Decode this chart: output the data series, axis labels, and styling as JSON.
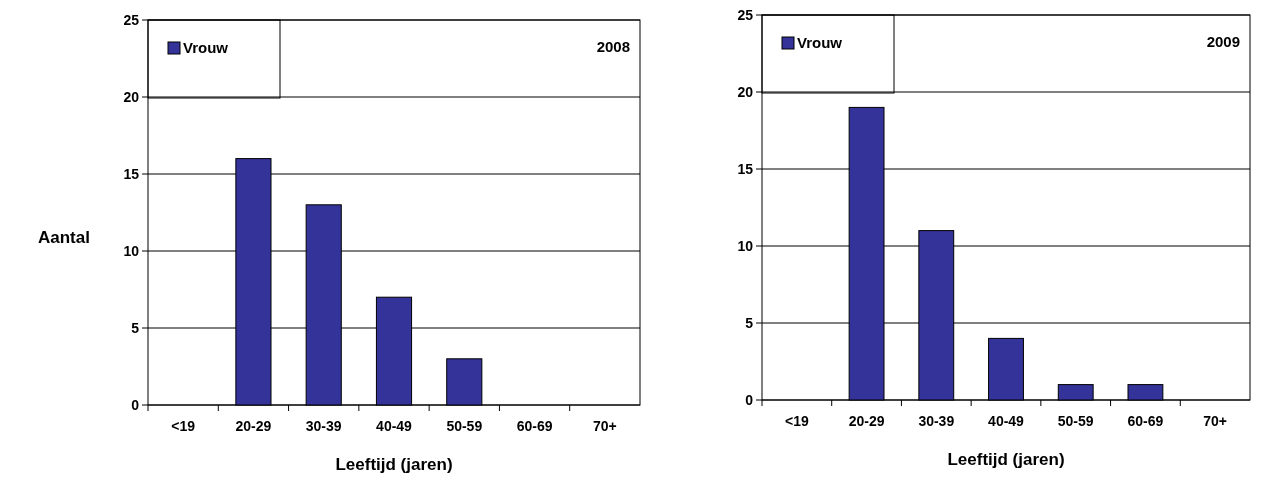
{
  "chart_data": [
    {
      "type": "bar",
      "title": "2008",
      "ylabel": "Aantal",
      "xlabel": "Leeftijd (jaren)",
      "categories": [
        "<19",
        "20-29",
        "30-39",
        "40-49",
        "50-59",
        "60-69",
        "70+"
      ],
      "series": [
        {
          "name": "Vrouw",
          "color": "#333399",
          "values": [
            0,
            16,
            13,
            7,
            3,
            0,
            0
          ]
        }
      ],
      "ylim": [
        0,
        25
      ],
      "yticks": [
        0,
        5,
        10,
        15,
        20,
        25
      ],
      "grid": "y",
      "legend": "top left"
    },
    {
      "type": "bar",
      "title": "2009",
      "xlabel": "Leeftijd (jaren)",
      "categories": [
        "<19",
        "20-29",
        "30-39",
        "40-49",
        "50-59",
        "60-69",
        "70+"
      ],
      "series": [
        {
          "name": "Vrouw",
          "color": "#333399",
          "values": [
            0,
            19,
            11,
            4,
            1,
            1,
            0
          ]
        }
      ],
      "ylim": [
        0,
        25
      ],
      "yticks": [
        0,
        5,
        10,
        15,
        20,
        25
      ],
      "grid": "y",
      "legend": "top left"
    }
  ]
}
